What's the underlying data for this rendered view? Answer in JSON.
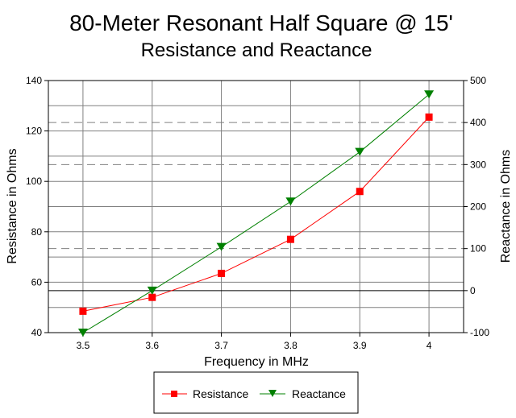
{
  "chart_data": {
    "type": "line",
    "title": "80-Meter Resonant Half Square @ 15'",
    "subtitle": "Resistance and Reactance",
    "xlabel": "Frequency in MHz",
    "ylabel": "Resistance in Ohms",
    "y2label": "Reactance in Ohms",
    "x": [
      3.5,
      3.6,
      3.7,
      3.8,
      3.9,
      4.0
    ],
    "x_tick_labels": [
      "3.5",
      "3.6",
      "3.7",
      "3.8",
      "3.9",
      "4"
    ],
    "xlim": [
      3.45,
      4.05
    ],
    "ylim": [
      40,
      140
    ],
    "y_ticks": [
      40,
      60,
      80,
      100,
      120,
      140
    ],
    "y2lim": [
      -100,
      500
    ],
    "y2_ticks": [
      -100,
      0,
      100,
      200,
      300,
      400,
      500
    ],
    "grid": true,
    "series": [
      {
        "name": "Resistance",
        "axis": "left",
        "color": "#ff0000",
        "marker": "square",
        "values": [
          48.5,
          54.0,
          63.5,
          77.0,
          96.0,
          125.5
        ]
      },
      {
        "name": "Reactance",
        "axis": "right",
        "color": "#008000",
        "marker": "triangle-down",
        "values": [
          -100,
          0,
          104,
          212,
          330,
          467
        ]
      }
    ],
    "legend_position": "bottom-center"
  }
}
